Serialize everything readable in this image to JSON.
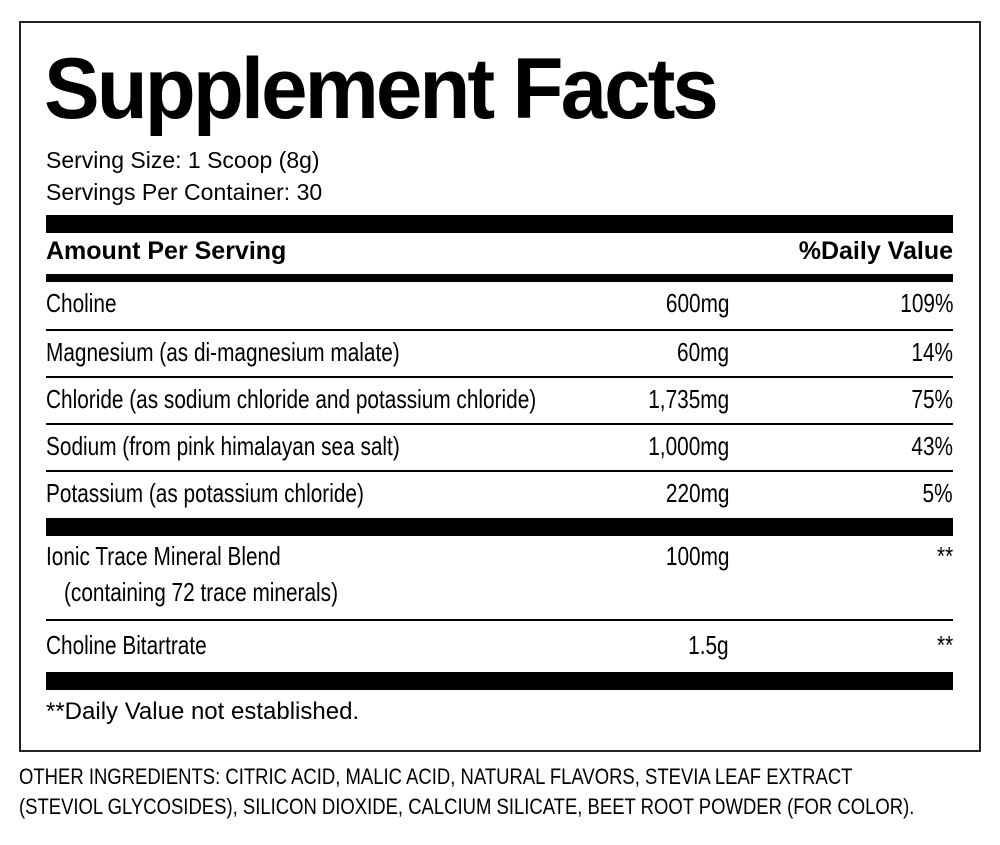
{
  "title": "Supplement Facts",
  "serving_size": "Serving Size: 1 Scoop (8g)",
  "servings_per_container": "Servings Per Container: 30",
  "header": {
    "amount": "Amount Per Serving",
    "dv": "%Daily Value"
  },
  "rows": [
    {
      "name": "Choline",
      "amount": "600mg",
      "dv": "109%"
    },
    {
      "name": "Magnesium (as di-magnesium malate)",
      "amount": "60mg",
      "dv": "14%"
    },
    {
      "name": "Chloride (as sodium chloride and potassium chloride)",
      "amount": "1,735mg",
      "dv": "75%"
    },
    {
      "name": "Sodium (from pink himalayan sea salt)",
      "amount": "1,000mg",
      "dv": "43%"
    },
    {
      "name": "Potassium (as potassium chloride)",
      "amount": "220mg",
      "dv": "5%"
    }
  ],
  "blend": {
    "name": "Ionic Trace Mineral Blend",
    "sub": "(containing 72 trace minerals)",
    "amount": "100mg",
    "dv": "**"
  },
  "bitartrate": {
    "name": "Choline Bitartrate",
    "amount": "1.5g",
    "dv": "**"
  },
  "footnote": "**Daily Value not established.",
  "other_ingredients": [
    "OTHER INGREDIENTS: CITRIC ACID, MALIC ACID, NATURAL FLAVORS, STEVIA LEAF EXTRACT",
    "(STEVIOL GLYCOSIDES), SILICON DIOXIDE, CALCIUM SILICATE, BEET ROOT POWDER (FOR COLOR)."
  ]
}
